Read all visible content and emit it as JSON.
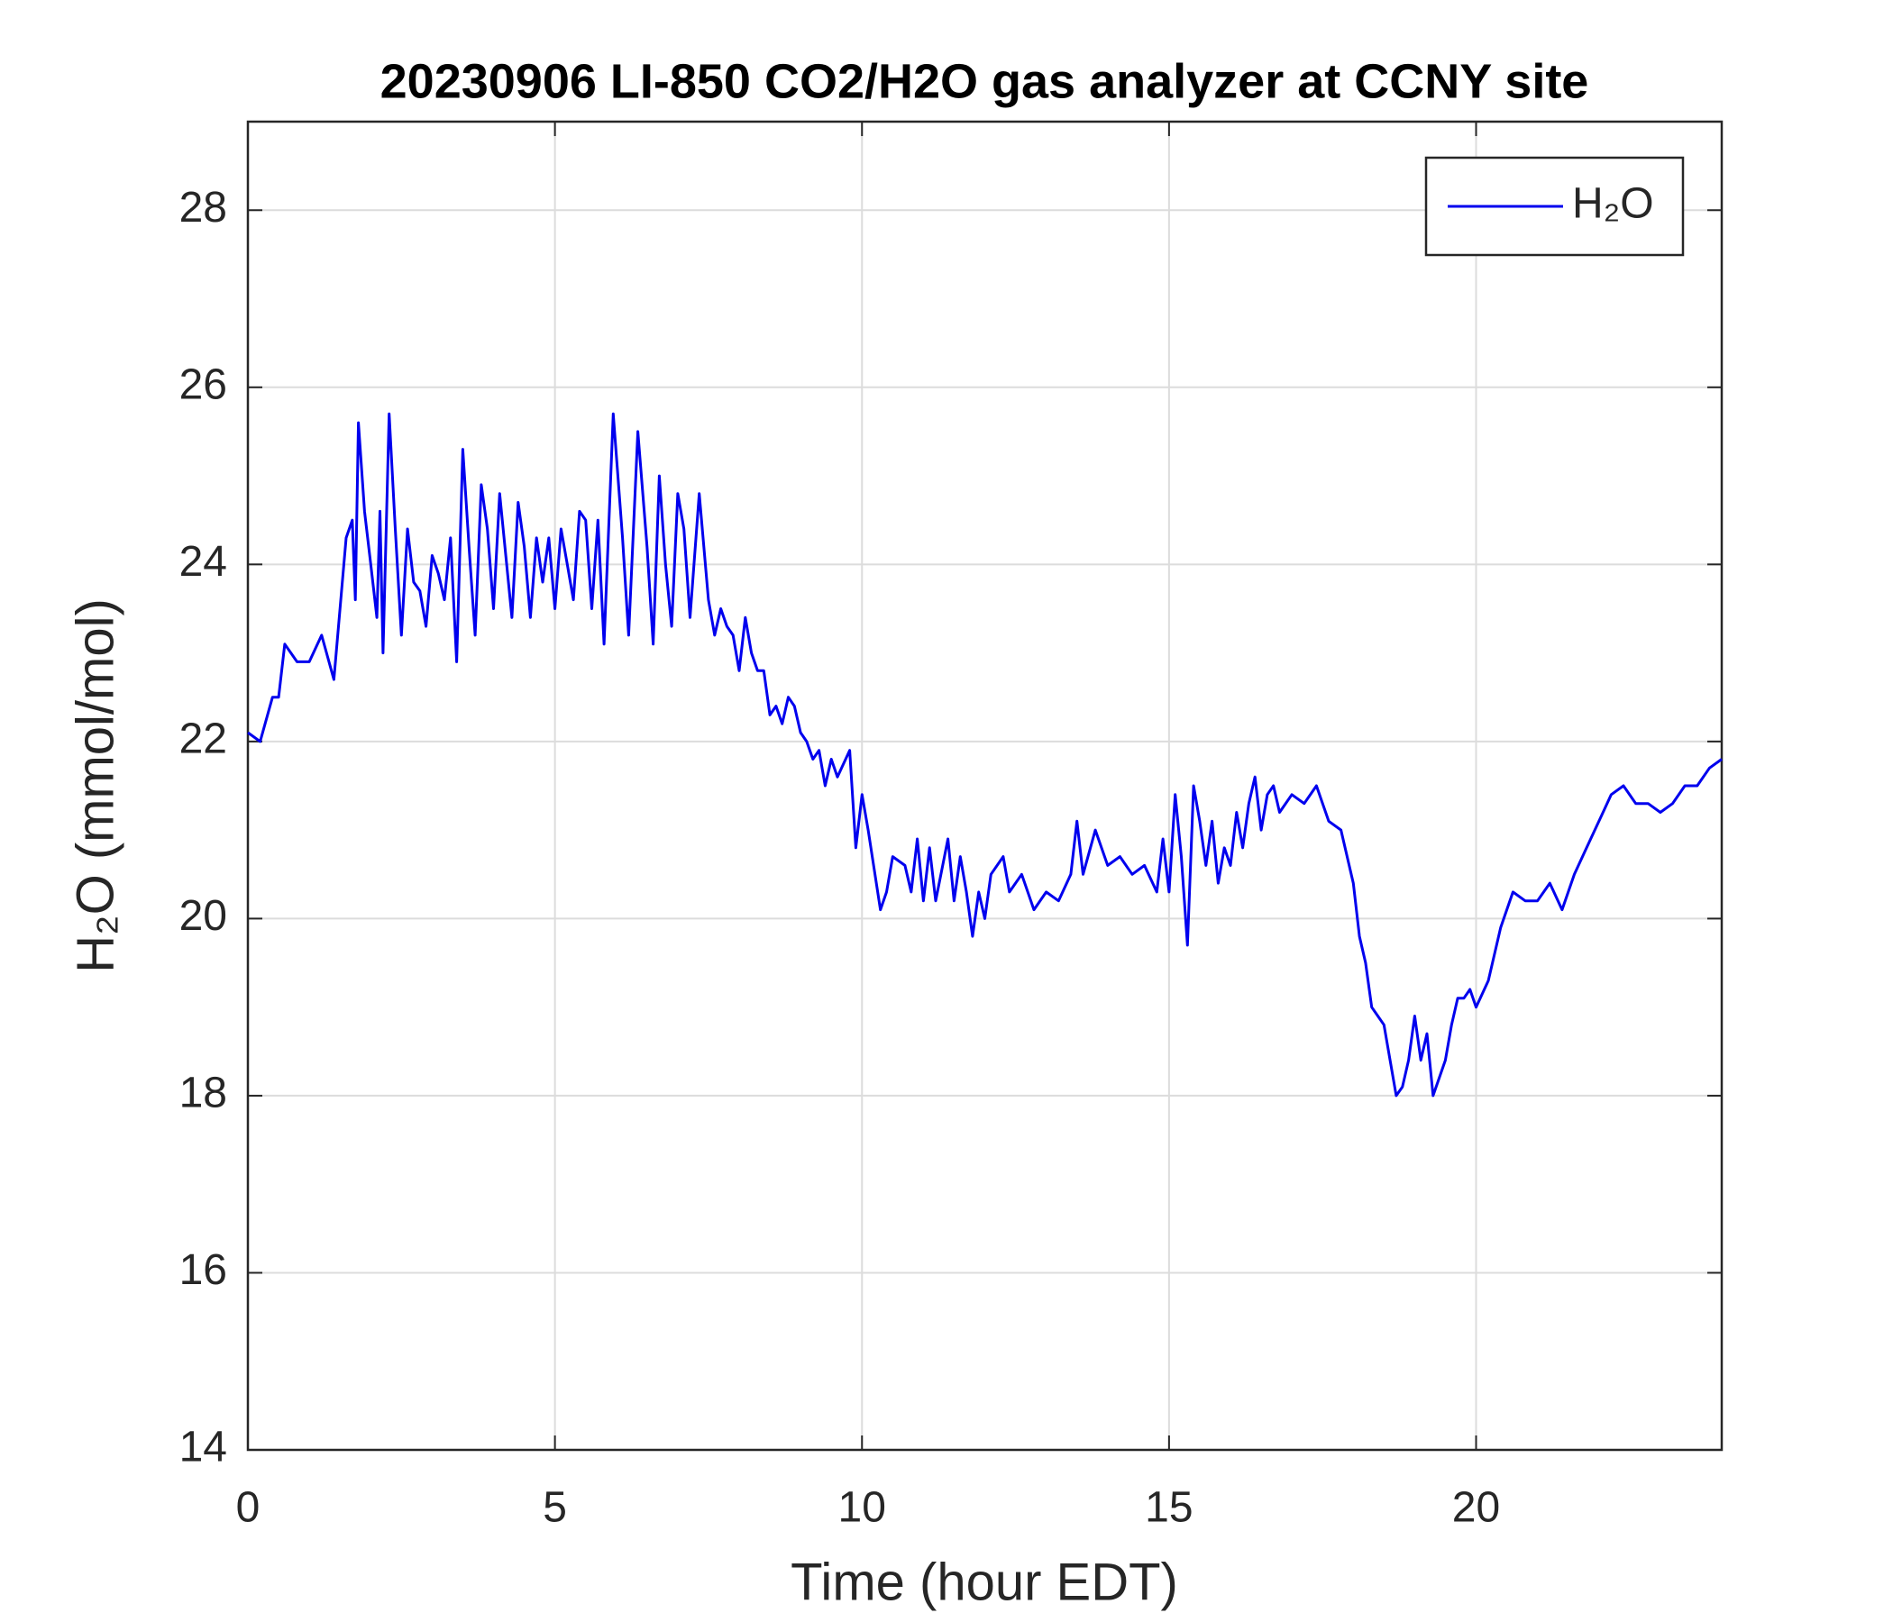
{
  "chart_data": {
    "type": "line",
    "title": "20230906 LI-850 CO2/H2O gas analyzer at CCNY site",
    "x_label": "Time (hour EDT)",
    "y_label": "H₂O (mmol/mol)",
    "xlim": [
      0,
      24
    ],
    "xticks": [
      0,
      5,
      10,
      15,
      20
    ],
    "ylim": [
      14,
      29
    ],
    "yticks": [
      14,
      16,
      18,
      20,
      22,
      24,
      26,
      28
    ],
    "grid": true,
    "legend_position": "upper right",
    "x": [
      0,
      0.2,
      0.4,
      0.5,
      0.6,
      0.8,
      1.0,
      1.2,
      1.4,
      1.5,
      1.6,
      1.7,
      1.75,
      1.8,
      1.9,
      2.0,
      2.1,
      2.15,
      2.2,
      2.3,
      2.4,
      2.5,
      2.6,
      2.7,
      2.8,
      2.9,
      3.0,
      3.1,
      3.2,
      3.3,
      3.4,
      3.5,
      3.6,
      3.7,
      3.8,
      3.9,
      4.0,
      4.1,
      4.2,
      4.3,
      4.4,
      4.5,
      4.6,
      4.7,
      4.8,
      4.9,
      5.0,
      5.1,
      5.2,
      5.3,
      5.4,
      5.5,
      5.6,
      5.7,
      5.8,
      5.95,
      6.1,
      6.2,
      6.35,
      6.5,
      6.6,
      6.7,
      6.8,
      6.9,
      7.0,
      7.1,
      7.2,
      7.35,
      7.5,
      7.6,
      7.7,
      7.8,
      7.9,
      8.0,
      8.1,
      8.2,
      8.3,
      8.4,
      8.5,
      8.6,
      8.7,
      8.8,
      8.9,
      9.0,
      9.1,
      9.2,
      9.3,
      9.4,
      9.5,
      9.6,
      9.8,
      9.9,
      10.0,
      10.1,
      10.3,
      10.4,
      10.5,
      10.7,
      10.8,
      10.9,
      11.0,
      11.1,
      11.2,
      11.4,
      11.5,
      11.6,
      11.7,
      11.8,
      11.9,
      12.0,
      12.1,
      12.3,
      12.4,
      12.6,
      12.8,
      13.0,
      13.2,
      13.4,
      13.5,
      13.6,
      13.8,
      14.0,
      14.2,
      14.4,
      14.6,
      14.8,
      14.9,
      15.0,
      15.1,
      15.2,
      15.3,
      15.4,
      15.5,
      15.6,
      15.7,
      15.8,
      15.9,
      16.0,
      16.1,
      16.2,
      16.3,
      16.4,
      16.5,
      16.6,
      16.7,
      16.8,
      17.0,
      17.2,
      17.4,
      17.6,
      17.8,
      18.0,
      18.1,
      18.2,
      18.3,
      18.4,
      18.5,
      18.6,
      18.7,
      18.8,
      18.9,
      19.0,
      19.1,
      19.2,
      19.3,
      19.4,
      19.5,
      19.6,
      19.7,
      19.8,
      19.9,
      20.0,
      20.2,
      20.4,
      20.6,
      20.8,
      21.0,
      21.2,
      21.4,
      21.6,
      21.8,
      22.0,
      22.2,
      22.4,
      22.6,
      22.8,
      23.0,
      23.2,
      23.4,
      23.6,
      23.8,
      24.0
    ],
    "series": [
      {
        "name": "H₂O",
        "color": "#0000ee",
        "values": [
          22.1,
          22.0,
          22.5,
          22.5,
          23.1,
          22.9,
          22.9,
          23.2,
          22.7,
          23.5,
          24.3,
          24.5,
          23.6,
          25.6,
          24.6,
          24.0,
          23.4,
          24.6,
          23.0,
          25.7,
          24.4,
          23.2,
          24.4,
          23.8,
          23.7,
          23.3,
          24.1,
          23.9,
          23.6,
          24.3,
          22.9,
          25.3,
          24.2,
          23.2,
          24.9,
          24.4,
          23.5,
          24.8,
          24.1,
          23.4,
          24.7,
          24.2,
          23.4,
          24.3,
          23.8,
          24.3,
          23.5,
          24.4,
          24.0,
          23.6,
          24.6,
          24.5,
          23.5,
          24.5,
          23.1,
          25.7,
          24.3,
          23.2,
          25.5,
          24.2,
          23.1,
          25.0,
          24.0,
          23.3,
          24.8,
          24.4,
          23.4,
          24.8,
          23.6,
          23.2,
          23.5,
          23.3,
          23.2,
          22.8,
          23.4,
          23.0,
          22.8,
          22.8,
          22.3,
          22.4,
          22.2,
          22.5,
          22.4,
          22.1,
          22.0,
          21.8,
          21.9,
          21.5,
          21.8,
          21.6,
          21.9,
          20.8,
          21.4,
          21.0,
          20.1,
          20.3,
          20.7,
          20.6,
          20.3,
          20.9,
          20.2,
          20.8,
          20.2,
          20.9,
          20.2,
          20.7,
          20.3,
          19.8,
          20.3,
          20.0,
          20.5,
          20.7,
          20.3,
          20.5,
          20.1,
          20.3,
          20.2,
          20.5,
          21.1,
          20.5,
          21.0,
          20.6,
          20.7,
          20.5,
          20.6,
          20.3,
          20.9,
          20.3,
          21.4,
          20.7,
          19.7,
          21.5,
          21.1,
          20.6,
          21.1,
          20.4,
          20.8,
          20.6,
          21.2,
          20.8,
          21.3,
          21.6,
          21.0,
          21.4,
          21.5,
          21.2,
          21.4,
          21.3,
          21.5,
          21.1,
          21.0,
          20.4,
          19.8,
          19.5,
          19.0,
          18.9,
          18.8,
          18.4,
          18.0,
          18.1,
          18.4,
          18.9,
          18.4,
          18.7,
          18.0,
          18.2,
          18.4,
          18.8,
          19.1,
          19.1,
          19.2,
          19.0,
          19.3,
          19.9,
          20.3,
          20.2,
          20.2,
          20.4,
          20.1,
          20.5,
          20.8,
          21.1,
          21.4,
          21.5,
          21.3,
          21.3,
          21.2,
          21.3,
          21.5,
          21.5,
          21.7,
          21.8
        ]
      }
    ]
  }
}
